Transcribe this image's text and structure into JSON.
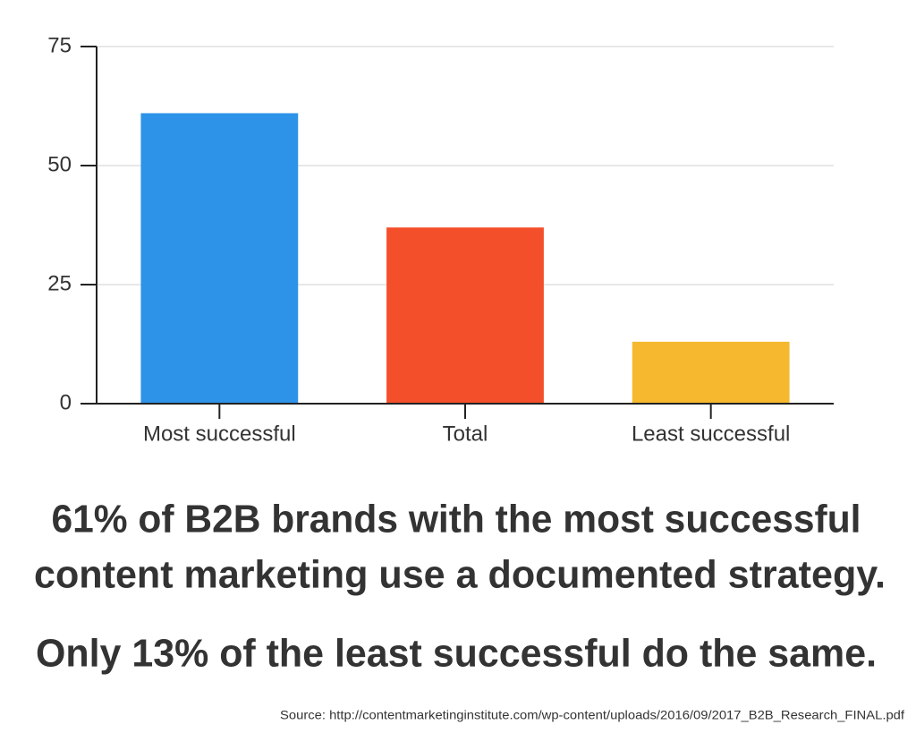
{
  "chart_data": {
    "type": "bar",
    "categories": [
      "Most successful",
      "Total",
      "Least successful"
    ],
    "values": [
      61,
      37,
      13
    ],
    "colors": [
      "#2d93e8",
      "#f44f2b",
      "#f5b82e"
    ],
    "ylim": [
      0,
      75
    ],
    "yticks": [
      0,
      25,
      50,
      75
    ],
    "grid": true,
    "annotations": [
      "61% of B2B brands with the most successful",
      "content marketing use a documented strategy.",
      "Only 13% of the least successful do the same."
    ],
    "source": "Source: http://contentmarketinginstitute.com/wp-content/uploads/2016/09/2017_B2B_Research_FINAL.pdf"
  }
}
